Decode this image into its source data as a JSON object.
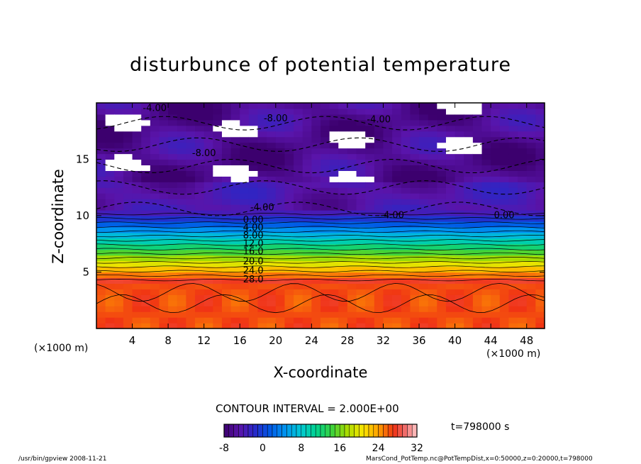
{
  "chart_data": {
    "type": "heatmap",
    "title": "disturbunce of potential temperature",
    "xlabel": "X-coordinate",
    "ylabel": "Z-coordinate",
    "x_unit_left": "(×1000 m)",
    "x_unit_right": "(×1000 m)",
    "xlim": [
      0,
      50
    ],
    "ylim": [
      0,
      20
    ],
    "x_ticks": [
      4,
      8,
      12,
      16,
      20,
      24,
      28,
      32,
      36,
      40,
      44,
      48
    ],
    "y_ticks": [
      5,
      10,
      15
    ],
    "contour_interval_label": "CONTOUR INTERVAL = 2.000E+00",
    "time_label": "t=798000 s",
    "colorbar": {
      "min": -8,
      "max": 32,
      "ticks": [
        "-8",
        "0",
        "8",
        "16",
        "24",
        "32"
      ]
    },
    "contour_labels": [
      {
        "text": "-4.00",
        "x": 6.5,
        "z": 19.5
      },
      {
        "text": "-8.00",
        "x": 20.0,
        "z": 18.6
      },
      {
        "text": "-4.00",
        "x": 31.5,
        "z": 18.5
      },
      {
        "text": "-8.00",
        "x": 12.0,
        "z": 15.5
      },
      {
        "text": "-4.00",
        "x": 18.5,
        "z": 10.7
      },
      {
        "text": "-4.00",
        "x": 33.0,
        "z": 10.0
      },
      {
        "text": "0.00",
        "x": 45.5,
        "z": 10.0
      },
      {
        "text": "0.00",
        "x": 17.5,
        "z": 9.6
      },
      {
        "text": "4.00",
        "x": 17.5,
        "z": 8.9
      },
      {
        "text": "8.00",
        "x": 17.5,
        "z": 8.2
      },
      {
        "text": "12.0",
        "x": 17.5,
        "z": 7.5
      },
      {
        "text": "16.0",
        "x": 17.5,
        "z": 6.8
      },
      {
        "text": "20.0",
        "x": 17.5,
        "z": 5.9
      },
      {
        "text": "24.0",
        "x": 17.5,
        "z": 5.1
      },
      {
        "text": "28.0",
        "x": 17.5,
        "z": 4.3
      }
    ]
  },
  "footer": {
    "left": "/usr/bin/gpview   2008-11-21",
    "right": "MarsCond_PotTemp.nc@PotTempDist,x=0:50000,z=0:20000,t=798000"
  }
}
